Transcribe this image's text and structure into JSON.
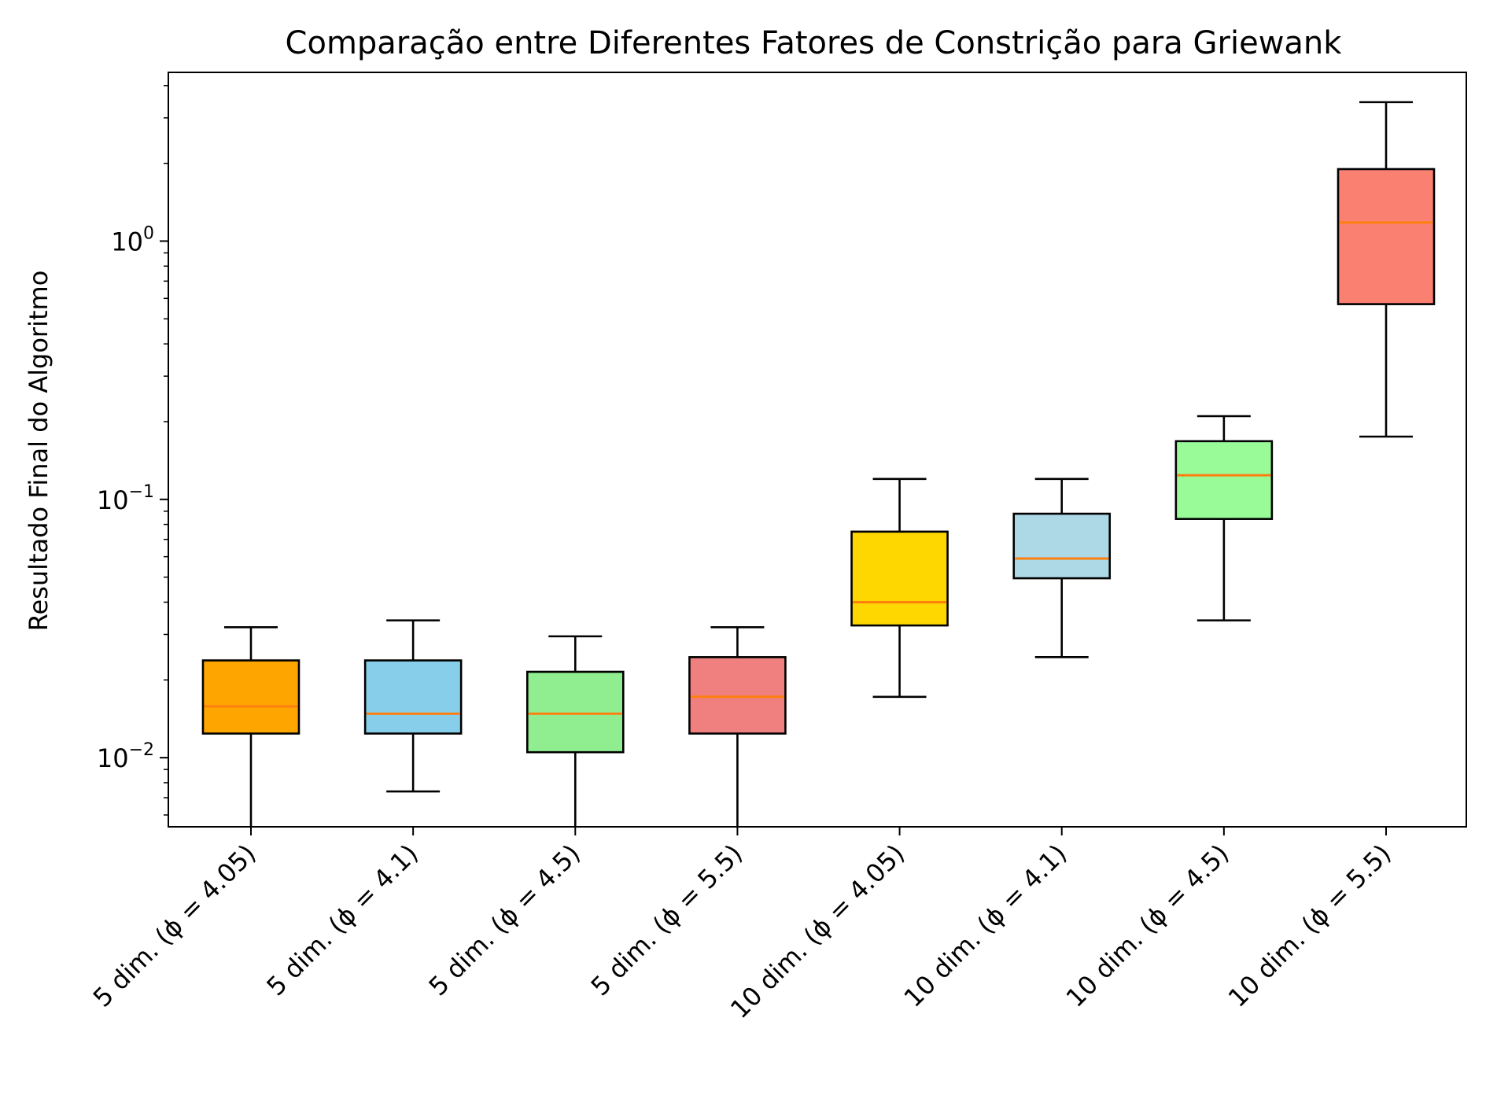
{
  "chart_data": {
    "type": "box",
    "title": "Comparação entre Diferentes Fatores de Constrição para Griewank",
    "xlabel": "",
    "ylabel": "Resultado Final do Algoritmo",
    "yscale": "log",
    "ylim": [
      0.0054,
      4.5
    ],
    "yticks": [
      {
        "value": 0.01,
        "base": "10",
        "exp": "−2"
      },
      {
        "value": 0.1,
        "base": "10",
        "exp": "−1"
      },
      {
        "value": 1,
        "base": "10",
        "exp": "0"
      }
    ],
    "grid": false,
    "categories": [
      "5 dim. (ϕ = 4.05)",
      "5 dim. (ϕ = 4.1)",
      "5 dim. (ϕ = 4.5)",
      "5 dim. (ϕ = 5.5)",
      "10 dim. (ϕ = 4.05)",
      "10 dim. (ϕ = 4.1)",
      "10 dim. (ϕ = 4.5)",
      "10 dim. (ϕ = 5.5)"
    ],
    "boxes": [
      {
        "whisker_low": 0.0054,
        "q1": 0.0124,
        "median": 0.0158,
        "q3": 0.0238,
        "whisker_high": 0.032,
        "color": "#FFA500"
      },
      {
        "whisker_low": 0.0074,
        "q1": 0.0124,
        "median": 0.0148,
        "q3": 0.0238,
        "whisker_high": 0.034,
        "color": "#87CEEB"
      },
      {
        "whisker_low": 0.0054,
        "q1": 0.0105,
        "median": 0.0148,
        "q3": 0.0215,
        "whisker_high": 0.0295,
        "color": "#90EE90"
      },
      {
        "whisker_low": 0.0054,
        "q1": 0.0124,
        "median": 0.0172,
        "q3": 0.0245,
        "whisker_high": 0.032,
        "color": "#F08080"
      },
      {
        "whisker_low": 0.0172,
        "q1": 0.0325,
        "median": 0.04,
        "q3": 0.075,
        "whisker_high": 0.12,
        "color": "#FFD700"
      },
      {
        "whisker_low": 0.0245,
        "q1": 0.0495,
        "median": 0.059,
        "q3": 0.088,
        "whisker_high": 0.12,
        "color": "#ADD8E6"
      },
      {
        "whisker_low": 0.034,
        "q1": 0.084,
        "median": 0.124,
        "q3": 0.168,
        "whisker_high": 0.21,
        "color": "#98FB98"
      },
      {
        "whisker_low": 0.175,
        "q1": 0.57,
        "median": 1.18,
        "q3": 1.9,
        "whisker_high": 3.45,
        "color": "#FA8072"
      }
    ],
    "median_color": "#FF7F0E"
  }
}
